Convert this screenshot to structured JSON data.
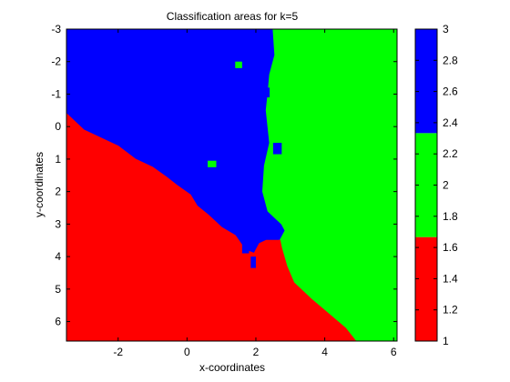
{
  "figure": {
    "background": "#ffffff",
    "plot_background": "#ffffff"
  },
  "chart_data": {
    "type": "heatmap",
    "title": "Classification areas for k=5",
    "xlabel": "x-coordinates",
    "ylabel": "y-coordinates",
    "xlim": [
      -3.5,
      6.1
    ],
    "ylim": [
      -3,
      6.6
    ],
    "y_reversed": true,
    "grid": false,
    "x_ticks": [
      -2,
      0,
      2,
      4,
      6
    ],
    "y_ticks": [
      -3,
      -2,
      -1,
      0,
      1,
      2,
      3,
      4,
      5,
      6
    ],
    "x_tick_labels": [
      "-2",
      "0",
      "2",
      "4",
      "6"
    ],
    "y_tick_labels": [
      "-3",
      "-2",
      "-1",
      "0",
      "1",
      "2",
      "3",
      "4",
      "5",
      "6"
    ],
    "classes": [
      {
        "value": 1,
        "color": "#ff0000",
        "color_name": "red"
      },
      {
        "value": 2,
        "color": "#00ff00",
        "color_name": "green"
      },
      {
        "value": 3,
        "color": "#0000ff",
        "color_name": "blue"
      }
    ],
    "regions": [
      {
        "class": 3,
        "color": "#0000ff",
        "polygon": [
          [
            -3.5,
            -3
          ],
          [
            2.5,
            -3
          ],
          [
            2.55,
            -2.2
          ],
          [
            2.4,
            -1.6
          ],
          [
            2.35,
            -1.0
          ],
          [
            2.3,
            -0.5
          ],
          [
            2.4,
            0.5
          ],
          [
            2.25,
            1.2
          ],
          [
            2.2,
            2.0
          ],
          [
            2.35,
            2.6
          ],
          [
            2.75,
            3.0
          ],
          [
            2.85,
            3.2
          ],
          [
            2.7,
            3.5
          ],
          [
            2.3,
            3.5
          ],
          [
            2.1,
            3.6
          ],
          [
            1.95,
            3.9
          ],
          [
            1.7,
            3.8
          ],
          [
            1.4,
            3.35
          ],
          [
            1.0,
            3.1
          ],
          [
            0.8,
            2.9
          ],
          [
            0.6,
            2.7
          ],
          [
            0.3,
            2.45
          ],
          [
            0.1,
            2.1
          ],
          [
            -0.3,
            1.8
          ],
          [
            -0.6,
            1.55
          ],
          [
            -1.0,
            1.25
          ],
          [
            -1.5,
            1.0
          ],
          [
            -2.0,
            0.6
          ],
          [
            -2.5,
            0.35
          ],
          [
            -3.0,
            0.1
          ],
          [
            -3.5,
            -0.4
          ]
        ]
      },
      {
        "class": 2,
        "color": "#00ff00",
        "polygon": [
          [
            2.5,
            -3
          ],
          [
            6.1,
            -3
          ],
          [
            6.1,
            6.6
          ],
          [
            4.9,
            6.6
          ],
          [
            4.6,
            6.2
          ],
          [
            4.1,
            5.75
          ],
          [
            3.6,
            5.3
          ],
          [
            3.1,
            4.8
          ],
          [
            2.9,
            4.3
          ],
          [
            2.75,
            3.75
          ],
          [
            2.7,
            3.5
          ],
          [
            2.85,
            3.2
          ],
          [
            2.75,
            3.0
          ],
          [
            2.35,
            2.6
          ],
          [
            2.2,
            2.0
          ],
          [
            2.25,
            1.2
          ],
          [
            2.4,
            0.5
          ],
          [
            2.3,
            -0.5
          ],
          [
            2.35,
            -1.0
          ],
          [
            2.4,
            -1.6
          ],
          [
            2.55,
            -2.2
          ]
        ]
      },
      {
        "class": 1,
        "color": "#ff0000",
        "polygon": [
          [
            -3.5,
            -0.4
          ],
          [
            -3.0,
            0.1
          ],
          [
            -2.5,
            0.35
          ],
          [
            -2.0,
            0.6
          ],
          [
            -1.5,
            1.0
          ],
          [
            -1.0,
            1.25
          ],
          [
            -0.6,
            1.55
          ],
          [
            -0.3,
            1.8
          ],
          [
            0.1,
            2.1
          ],
          [
            0.3,
            2.45
          ],
          [
            0.6,
            2.7
          ],
          [
            0.8,
            2.9
          ],
          [
            1.0,
            3.1
          ],
          [
            1.4,
            3.35
          ],
          [
            1.7,
            3.8
          ],
          [
            1.95,
            3.9
          ],
          [
            2.1,
            3.6
          ],
          [
            2.3,
            3.5
          ],
          [
            2.7,
            3.5
          ],
          [
            2.75,
            3.75
          ],
          [
            2.9,
            4.3
          ],
          [
            3.1,
            4.8
          ],
          [
            3.6,
            5.3
          ],
          [
            4.1,
            5.75
          ],
          [
            4.6,
            6.2
          ],
          [
            4.9,
            6.6
          ],
          [
            -3.5,
            6.6
          ]
        ]
      }
    ],
    "patches": [
      {
        "class": 2,
        "color": "#00ff00",
        "x": [
          1.4,
          1.6
        ],
        "y": [
          -2.0,
          -1.8
        ]
      },
      {
        "class": 2,
        "color": "#00ff00",
        "x": [
          0.6,
          0.85
        ],
        "y": [
          1.05,
          1.25
        ]
      },
      {
        "class": 3,
        "color": "#0000ff",
        "x": [
          2.5,
          2.75
        ],
        "y": [
          0.5,
          0.85
        ]
      },
      {
        "class": 3,
        "color": "#0000ff",
        "x": [
          2.15,
          2.4
        ],
        "y": [
          -1.2,
          -0.9
        ]
      },
      {
        "class": 3,
        "color": "#0000ff",
        "x": [
          1.6,
          1.8
        ],
        "y": [
          3.6,
          3.9
        ]
      },
      {
        "class": 3,
        "color": "#0000ff",
        "x": [
          1.85,
          2.0
        ],
        "y": [
          4.0,
          4.35
        ]
      }
    ],
    "colorbar": {
      "lim": [
        1,
        3
      ],
      "ticks": [
        1,
        1.2,
        1.4,
        1.6,
        1.8,
        2,
        2.2,
        2.4,
        2.6,
        2.8,
        3
      ],
      "tick_labels": [
        "1",
        "1.2",
        "1.4",
        "1.6",
        "1.8",
        "2",
        "2.2",
        "2.4",
        "2.6",
        "2.8",
        "3"
      ],
      "segments": [
        {
          "from": 1,
          "to": 1.6667,
          "color": "#ff0000"
        },
        {
          "from": 1.6667,
          "to": 2.3333,
          "color": "#00ff00"
        },
        {
          "from": 2.3333,
          "to": 3,
          "color": "#0000ff"
        }
      ]
    }
  }
}
